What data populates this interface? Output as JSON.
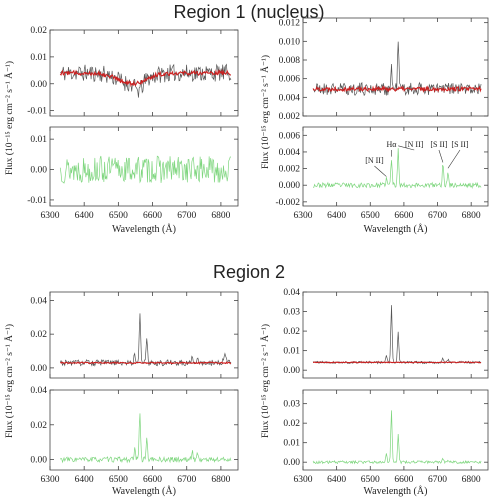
{
  "regions": [
    {
      "title": "Region 1 (nucleus)"
    },
    {
      "title": "Region 2"
    }
  ],
  "colors": {
    "observed": "#555555",
    "model": "#cc1f1f",
    "residual": "#7fd67f",
    "axis": "#444444"
  },
  "chart_data": [
    {
      "id": "r1-left",
      "type": "line",
      "panels": [
        {
          "role": "spectrum_with_fit",
          "ylim": [
            -0.012,
            0.02
          ],
          "yticks": [
            -0.01,
            0.0,
            0.01,
            0.02
          ],
          "ytick_labels": [
            "-0.01",
            "0.00",
            "0.01",
            "0.02"
          ]
        },
        {
          "role": "residual",
          "ylim": [
            -0.012,
            0.014
          ],
          "yticks": [
            -0.01,
            0.0,
            0.01
          ],
          "ytick_labels": [
            "-0.01",
            "0.00",
            "0.01"
          ]
        }
      ],
      "xlim": [
        6300,
        6850
      ],
      "xticks": [
        6300,
        6400,
        6500,
        6600,
        6700,
        6800
      ],
      "xlabel": "Wavelength (Å)",
      "ylabel": "Flux (10⁻¹⁵ erg cm⁻² s⁻¹ Å⁻¹)",
      "x_range": [
        6330,
        6830
      ],
      "series": [
        {
          "role": "observed",
          "baseline": 0.004,
          "noise": 0.0032,
          "seed": 11,
          "features": [
            {
              "x": 6540,
              "amp": -0.004,
              "width": 40
            },
            {
              "x": 6560,
              "amp": -0.003,
              "width": 10
            }
          ]
        },
        {
          "role": "model",
          "baseline": 0.004,
          "noise": 0.0008,
          "seed": 12,
          "features": [
            {
              "x": 6540,
              "amp": -0.004,
              "width": 40
            }
          ]
        },
        {
          "role": "residual",
          "baseline": 0.0,
          "noise": 0.0045,
          "seed": 13,
          "features": []
        }
      ]
    },
    {
      "id": "r1-right",
      "type": "line",
      "panels": [
        {
          "role": "spectrum_with_fit",
          "ylim": [
            0.002,
            0.0125
          ],
          "yticks": [
            0.002,
            0.004,
            0.006,
            0.008,
            0.01,
            0.012
          ],
          "ytick_labels": [
            "0.002",
            "0.004",
            "0.006",
            "0.008",
            "0.010",
            "0.012"
          ]
        },
        {
          "role": "residual",
          "ylim": [
            -0.0025,
            0.007
          ],
          "yticks": [
            -0.002,
            0.0,
            0.002,
            0.004,
            0.006
          ],
          "ytick_labels": [
            "-0.002",
            "0.000",
            "0.002",
            "0.004",
            "0.006"
          ]
        }
      ],
      "xlim": [
        6300,
        6850
      ],
      "xticks": [
        6300,
        6400,
        6500,
        6600,
        6700,
        6800
      ],
      "xlabel": "Wavelength (Å)",
      "ylabel": "Flux (10⁻¹⁵ erg cm⁻² s⁻¹ Å⁻¹)",
      "x_range": [
        6330,
        6830
      ],
      "series": [
        {
          "role": "observed",
          "baseline": 0.0049,
          "noise": 0.0007,
          "seed": 21,
          "features": [
            {
              "x": 6583,
              "amp": 0.0052,
              "width": 2
            },
            {
              "x": 6563,
              "amp": 0.0022,
              "width": 2
            }
          ]
        },
        {
          "role": "model",
          "baseline": 0.0049,
          "noise": 0.00022,
          "seed": 22,
          "features": []
        },
        {
          "role": "residual",
          "baseline": 0.0,
          "noise": 0.0003,
          "seed": 23,
          "features": [
            {
              "x": 6563,
              "amp": 0.0032,
              "width": 2
            },
            {
              "x": 6583,
              "amp": 0.0045,
              "width": 2
            },
            {
              "x": 6548,
              "amp": 0.0008,
              "width": 2
            },
            {
              "x": 6716,
              "amp": 0.0025,
              "width": 2
            },
            {
              "x": 6731,
              "amp": 0.0018,
              "width": 2
            }
          ]
        }
      ],
      "annotations": [
        {
          "text": "Hα",
          "x": 6563
        },
        {
          "text": "[N II]",
          "x": 6548
        },
        {
          "text": "[N II]",
          "x": 6583
        },
        {
          "text": "[S II]",
          "x": 6716
        },
        {
          "text": "[S II]",
          "x": 6731
        }
      ]
    },
    {
      "id": "r2-left",
      "type": "line",
      "panels": [
        {
          "role": "spectrum_with_fit",
          "ylim": [
            -0.006,
            0.045
          ],
          "yticks": [
            0.0,
            0.02,
            0.04
          ],
          "ytick_labels": [
            "0.00",
            "0.02",
            "0.04"
          ]
        },
        {
          "role": "residual",
          "ylim": [
            -0.006,
            0.04
          ],
          "yticks": [
            0.0,
            0.02,
            0.04
          ],
          "ytick_labels": [
            "0.00",
            "0.02",
            "0.04"
          ]
        }
      ],
      "xlim": [
        6300,
        6850
      ],
      "xticks": [
        6300,
        6400,
        6500,
        6600,
        6700,
        6800
      ],
      "xlabel": "Wavelength (Å)",
      "ylabel": "Flux (10⁻¹⁵ erg cm⁻² s⁻¹ Å⁻¹)",
      "x_range": [
        6330,
        6830
      ],
      "series": [
        {
          "role": "observed",
          "baseline": 0.003,
          "noise": 0.0018,
          "seed": 31,
          "features": [
            {
              "x": 6563,
              "amp": 0.031,
              "width": 2
            },
            {
              "x": 6583,
              "amp": 0.015,
              "width": 2
            },
            {
              "x": 6548,
              "amp": 0.006,
              "width": 2
            },
            {
              "x": 6716,
              "amp": 0.005,
              "width": 2
            },
            {
              "x": 6731,
              "amp": 0.004,
              "width": 2
            },
            {
              "x": 6812,
              "amp": 0.007,
              "width": 3
            }
          ]
        },
        {
          "role": "model",
          "baseline": 0.003,
          "noise": 0.0004,
          "seed": 32,
          "features": []
        },
        {
          "role": "residual",
          "baseline": 0.0,
          "noise": 0.0015,
          "seed": 33,
          "features": [
            {
              "x": 6563,
              "amp": 0.028,
              "width": 2
            },
            {
              "x": 6583,
              "amp": 0.013,
              "width": 2
            },
            {
              "x": 6548,
              "amp": 0.006,
              "width": 2
            },
            {
              "x": 6716,
              "amp": 0.005,
              "width": 2
            },
            {
              "x": 6731,
              "amp": 0.004,
              "width": 2
            }
          ]
        }
      ]
    },
    {
      "id": "r2-right",
      "type": "line",
      "panels": [
        {
          "role": "spectrum_with_fit",
          "ylim": [
            -0.004,
            0.04
          ],
          "yticks": [
            0.0,
            0.01,
            0.02,
            0.03,
            0.04
          ],
          "ytick_labels": [
            "0.00",
            "0.01",
            "0.02",
            "0.03",
            "0.04"
          ]
        },
        {
          "role": "residual",
          "ylim": [
            -0.004,
            0.037
          ],
          "yticks": [
            0.0,
            0.01,
            0.02,
            0.03
          ],
          "ytick_labels": [
            "0.00",
            "0.01",
            "0.02",
            "0.03"
          ]
        }
      ],
      "xlim": [
        6300,
        6850
      ],
      "xticks": [
        6300,
        6400,
        6500,
        6600,
        6700,
        6800
      ],
      "xlabel": "Wavelength (Å)",
      "ylabel": "Flux (10⁻¹⁵ erg cm⁻² s⁻¹ Å⁻¹)",
      "x_range": [
        6330,
        6830
      ],
      "series": [
        {
          "role": "observed",
          "baseline": 0.004,
          "noise": 0.0006,
          "seed": 41,
          "features": [
            {
              "x": 6563,
              "amp": 0.029,
              "width": 2
            },
            {
              "x": 6583,
              "amp": 0.016,
              "width": 2
            },
            {
              "x": 6548,
              "amp": 0.004,
              "width": 2
            },
            {
              "x": 6716,
              "amp": 0.002,
              "width": 2
            },
            {
              "x": 6731,
              "amp": 0.0015,
              "width": 2
            }
          ]
        },
        {
          "role": "model",
          "baseline": 0.004,
          "noise": 0.0002,
          "seed": 42,
          "features": []
        },
        {
          "role": "residual",
          "baseline": 0.0,
          "noise": 0.0007,
          "seed": 43,
          "features": [
            {
              "x": 6563,
              "amp": 0.027,
              "width": 2
            },
            {
              "x": 6583,
              "amp": 0.015,
              "width": 2
            },
            {
              "x": 6548,
              "amp": 0.004,
              "width": 2
            },
            {
              "x": 6716,
              "amp": 0.002,
              "width": 2
            },
            {
              "x": 6731,
              "amp": 0.0015,
              "width": 2
            }
          ]
        }
      ]
    }
  ]
}
